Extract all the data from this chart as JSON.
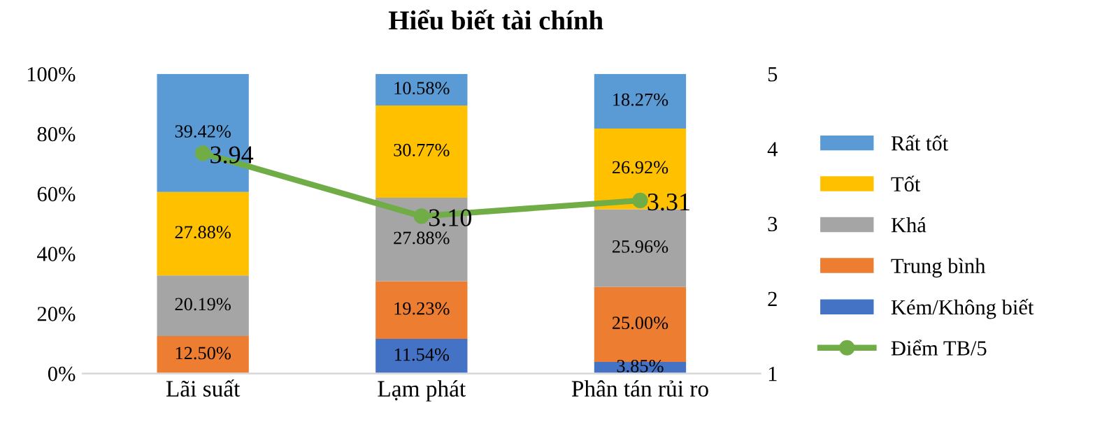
{
  "chart_data": {
    "type": "bar",
    "title": "Hiểu biết tài chính",
    "stacked": true,
    "categories": [
      "Lãi suất",
      "Lạm phát",
      "Phân tán rủi ro"
    ],
    "series": [
      {
        "name": "Kém/Không biết",
        "color": "#4472c4",
        "values": [
          0,
          11.54,
          3.85
        ],
        "value_labels": [
          null,
          "11.54%",
          "3.85%"
        ]
      },
      {
        "name": "Trung bình",
        "color": "#ed7d31",
        "values": [
          12.5,
          19.23,
          25.0
        ],
        "value_labels": [
          "12.50%",
          "19.23%",
          "25.00%"
        ]
      },
      {
        "name": "Khá",
        "color": "#a5a5a5",
        "values": [
          20.19,
          27.88,
          25.96
        ],
        "value_labels": [
          "20.19%",
          "27.88%",
          "25.96%"
        ]
      },
      {
        "name": "Tốt",
        "color": "#ffc000",
        "values": [
          27.88,
          30.77,
          26.92
        ],
        "value_labels": [
          "27.88%",
          "30.77%",
          "26.92%"
        ]
      },
      {
        "name": "Rất tốt",
        "color": "#5b9bd5",
        "values": [
          39.42,
          10.58,
          18.27
        ],
        "value_labels": [
          "39.42%",
          "10.58%",
          "18.27%"
        ]
      },
      {
        "name": "Điểm TB/5",
        "type": "line",
        "axis": "y2",
        "color": "#70ad47",
        "marker": "circle",
        "values": [
          3.94,
          3.1,
          3.31
        ],
        "value_labels": [
          "3.94",
          "3.10",
          "3.31"
        ]
      }
    ],
    "ylim": [
      0,
      100
    ],
    "yticks": [
      {
        "value": 0,
        "label": "0%"
      },
      {
        "value": 20,
        "label": "20%"
      },
      {
        "value": 40,
        "label": "40%"
      },
      {
        "value": 60,
        "label": "60%"
      },
      {
        "value": 80,
        "label": "80%"
      },
      {
        "value": 100,
        "label": "100%"
      }
    ],
    "y2lim": [
      1,
      5
    ],
    "y2ticks": [
      1,
      2,
      3,
      4,
      5
    ],
    "grid": false,
    "legend": "right"
  }
}
